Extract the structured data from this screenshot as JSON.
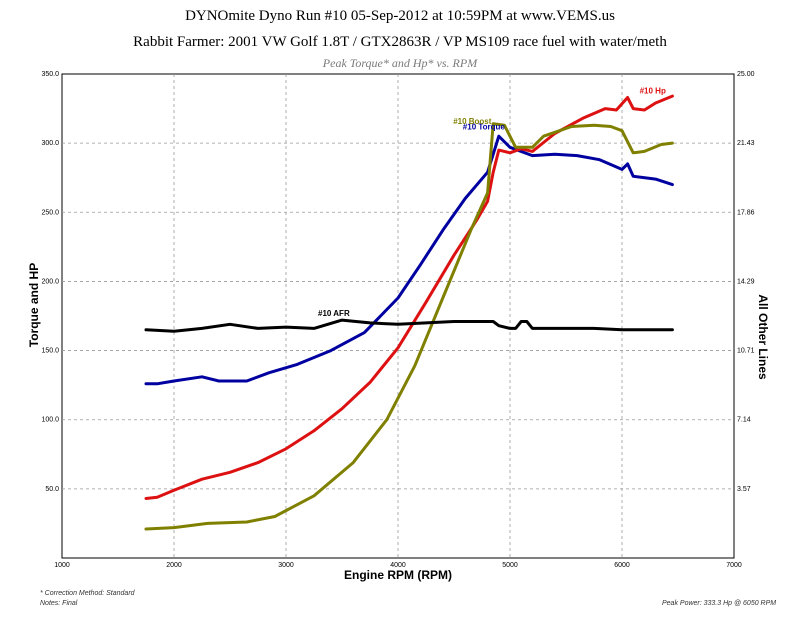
{
  "titles": {
    "line1": "DYNOmite Dyno Run #10 05-Sep-2012 at 10:59PM at www.VEMS.us",
    "line2": "Rabbit Farmer: 2001 VW Golf 1.8T / GTX2863R / VP MS109 race fuel with water/meth",
    "line3": "Peak Torque* and Hp* vs. RPM"
  },
  "footer": {
    "correction": "* Correction Method: Standard",
    "notes": "Notes: Final",
    "peak": "Peak Power: 333.3 Hp @ 6050 RPM"
  },
  "chart_data": {
    "type": "line",
    "xlabel": "Engine RPM (RPM)",
    "ylabel": "Torque and HP",
    "y2label": "All Other Lines",
    "xlim": [
      1000,
      7000
    ],
    "ylim": [
      0,
      350
    ],
    "y2lim": [
      0,
      25
    ],
    "xticks": [
      "1000",
      "2000",
      "3000",
      "4000",
      "5000",
      "6000",
      "7000"
    ],
    "yticks": [
      "50.0",
      "100.0",
      "150.0",
      "200.0",
      "250.0",
      "300.0",
      "350.0"
    ],
    "y2ticks": [
      "3.57",
      "7.14",
      "10.71",
      "14.29",
      "17.86",
      "21.43",
      "25.00"
    ],
    "grid": true,
    "series": [
      {
        "name": "#10 Torque",
        "color": "#0000a0",
        "axis": "left",
        "points": [
          [
            1750,
            126
          ],
          [
            1850,
            126
          ],
          [
            2000,
            128
          ],
          [
            2250,
            131
          ],
          [
            2400,
            128
          ],
          [
            2650,
            128
          ],
          [
            2850,
            134
          ],
          [
            3100,
            140
          ],
          [
            3400,
            150
          ],
          [
            3700,
            163
          ],
          [
            4000,
            188
          ],
          [
            4200,
            212
          ],
          [
            4400,
            237
          ],
          [
            4600,
            260
          ],
          [
            4800,
            279
          ],
          [
            4900,
            305
          ],
          [
            5000,
            297
          ],
          [
            5200,
            291
          ],
          [
            5400,
            292
          ],
          [
            5600,
            291
          ],
          [
            5800,
            288
          ],
          [
            6000,
            281
          ],
          [
            6050,
            285
          ],
          [
            6100,
            276
          ],
          [
            6300,
            274
          ],
          [
            6450,
            270
          ]
        ]
      },
      {
        "name": "#10 Hp",
        "color": "#dd1111",
        "axis": "left",
        "points": [
          [
            1750,
            43
          ],
          [
            1850,
            44
          ],
          [
            2000,
            49
          ],
          [
            2250,
            57
          ],
          [
            2500,
            62
          ],
          [
            2750,
            69
          ],
          [
            3000,
            79
          ],
          [
            3250,
            92
          ],
          [
            3500,
            108
          ],
          [
            3750,
            127
          ],
          [
            4000,
            152
          ],
          [
            4250,
            185
          ],
          [
            4500,
            219
          ],
          [
            4700,
            244
          ],
          [
            4800,
            258
          ],
          [
            4850,
            279
          ],
          [
            4900,
            295
          ],
          [
            5000,
            293
          ],
          [
            5100,
            296
          ],
          [
            5200,
            294
          ],
          [
            5400,
            307
          ],
          [
            5650,
            318
          ],
          [
            5850,
            325
          ],
          [
            5950,
            324
          ],
          [
            6050,
            333
          ],
          [
            6100,
            325
          ],
          [
            6200,
            324
          ],
          [
            6300,
            329
          ],
          [
            6450,
            334
          ]
        ]
      },
      {
        "name": "#10 Boost",
        "color": "#808000",
        "axis": "left",
        "points": [
          [
            1750,
            21
          ],
          [
            2000,
            22
          ],
          [
            2300,
            25
          ],
          [
            2650,
            26
          ],
          [
            2900,
            30
          ],
          [
            3250,
            45
          ],
          [
            3600,
            69
          ],
          [
            3900,
            100
          ],
          [
            4150,
            139
          ],
          [
            4400,
            188
          ],
          [
            4650,
            237
          ],
          [
            4800,
            264
          ],
          [
            4850,
            314
          ],
          [
            4950,
            313
          ],
          [
            5050,
            297
          ],
          [
            5200,
            297
          ],
          [
            5300,
            305
          ],
          [
            5550,
            312
          ],
          [
            5750,
            313
          ],
          [
            5900,
            312
          ],
          [
            6000,
            309
          ],
          [
            6100,
            293
          ],
          [
            6200,
            294
          ],
          [
            6350,
            299
          ],
          [
            6450,
            300
          ]
        ]
      },
      {
        "name": "#10 AFR",
        "color": "#000000",
        "axis": "left",
        "points": [
          [
            1750,
            165
          ],
          [
            2000,
            164
          ],
          [
            2250,
            166
          ],
          [
            2500,
            169
          ],
          [
            2750,
            166
          ],
          [
            3000,
            167
          ],
          [
            3250,
            166
          ],
          [
            3500,
            172
          ],
          [
            3750,
            170
          ],
          [
            4000,
            169
          ],
          [
            4250,
            170
          ],
          [
            4500,
            171
          ],
          [
            4850,
            171
          ],
          [
            4900,
            168
          ],
          [
            5000,
            166
          ],
          [
            5050,
            166
          ],
          [
            5100,
            171
          ],
          [
            5150,
            171
          ],
          [
            5200,
            166
          ],
          [
            5500,
            166
          ],
          [
            5750,
            166
          ],
          [
            6000,
            165
          ],
          [
            6450,
            165
          ]
        ]
      }
    ]
  }
}
